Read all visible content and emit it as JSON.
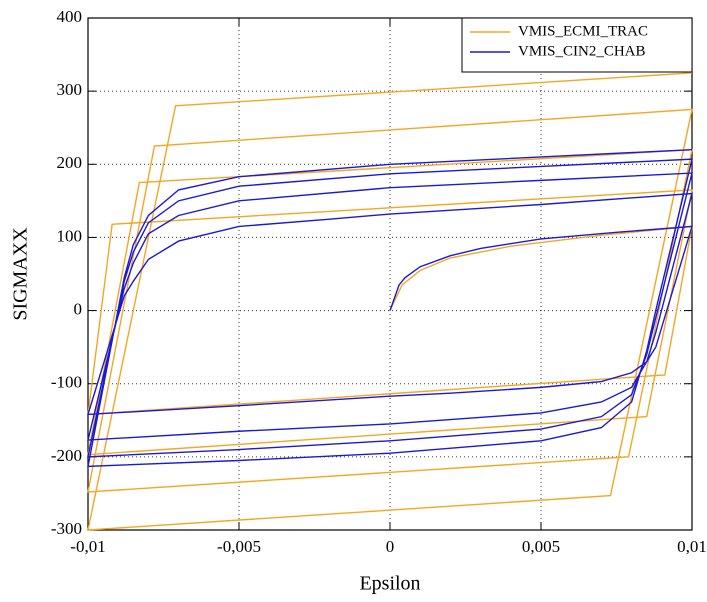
{
  "chart_data": {
    "type": "line",
    "xlabel": "Epsilon",
    "ylabel": "SIGMAXX",
    "xlim": [
      -0.01,
      0.01
    ],
    "xticks": [
      {
        "value": -0.01,
        "label": "-0,01"
      },
      {
        "value": -0.005,
        "label": "-0,005"
      },
      0,
      {
        "value": 0.005,
        "label": "0,005"
      },
      {
        "value": 0.01,
        "label": "0,01"
      }
    ],
    "ylim": [
      -300,
      400
    ],
    "yticks": [
      -300,
      -200,
      -100,
      0,
      100,
      200,
      300,
      400
    ],
    "grid": true,
    "legend": "upper right",
    "series": [
      {
        "name": "VMIS_ECMI_TRAC",
        "color": "#f5a623",
        "x": [
          0,
          0.0004,
          0.001,
          0.002,
          0.004,
          0.007,
          0.01,
          0.0091,
          -0.01,
          -0.0092,
          0.01,
          0.0085,
          -0.01,
          -0.0083,
          0.01,
          0.0079,
          -0.01,
          -0.0078,
          0.01,
          0.0073,
          -0.01,
          -0.0071,
          0.01
        ],
        "values": [
          0,
          35,
          55,
          72,
          88,
          103,
          115,
          -88,
          -142,
          118,
          165,
          -145,
          -197,
          175,
          220,
          -200,
          -248,
          225,
          275,
          -253,
          -300,
          280,
          325
        ]
      },
      {
        "name": "VMIS_CIN2_CHAB",
        "color": "#1a1ad6",
        "x": [
          0,
          0.0003,
          0.0005,
          0.001,
          0.002,
          0.003,
          0.005,
          0.0075,
          0.01,
          0.0088,
          0.0085,
          0.008,
          0.007,
          0.005,
          0.002,
          0,
          -0.005,
          -0.01,
          -0.0088,
          -0.0085,
          -0.008,
          -0.007,
          -0.005,
          -0.002,
          0,
          0.005,
          0.01,
          0.0088,
          0.0085,
          0.008,
          0.007,
          0.005,
          0,
          -0.005,
          -0.01,
          -0.0088,
          -0.0085,
          -0.008,
          -0.007,
          -0.005,
          0,
          0.005,
          0.01,
          0.0088,
          0.0085,
          0.008,
          0.007,
          0.005,
          0,
          -0.005,
          -0.01,
          -0.0088,
          -0.0085,
          -0.008,
          -0.007,
          -0.005,
          0,
          0.005,
          0.01,
          0.0088,
          0.0085,
          0.008,
          0.007,
          0.005,
          0,
          -0.005,
          -0.01,
          -0.0088,
          -0.0085,
          -0.008,
          -0.007,
          -0.005,
          0,
          0.005,
          0.01
        ],
        "values": [
          0,
          35,
          45,
          60,
          75,
          85,
          98,
          107,
          115,
          -50,
          -70,
          -85,
          -97,
          -105,
          -113,
          -117,
          -130,
          -142,
          20,
          40,
          70,
          95,
          115,
          125,
          132,
          145,
          160,
          -30,
          -70,
          -105,
          -125,
          -140,
          -155,
          -165,
          -177,
          30,
          65,
          105,
          130,
          150,
          168,
          178,
          188,
          -10,
          -60,
          -115,
          -145,
          -162,
          -178,
          -190,
          -200,
          40,
          80,
          120,
          150,
          170,
          187,
          197,
          207,
          0,
          -55,
          -125,
          -160,
          -178,
          -195,
          -205,
          -213,
          45,
          90,
          130,
          165,
          183,
          200,
          210,
          220
        ]
      }
    ]
  }
}
